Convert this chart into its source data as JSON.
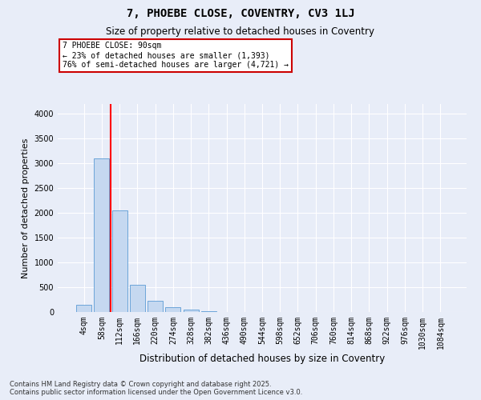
{
  "title": "7, PHOEBE CLOSE, COVENTRY, CV3 1LJ",
  "subtitle": "Size of property relative to detached houses in Coventry",
  "xlabel": "Distribution of detached houses by size in Coventry",
  "ylabel": "Number of detached properties",
  "footer_line1": "Contains HM Land Registry data © Crown copyright and database right 2025.",
  "footer_line2": "Contains public sector information licensed under the Open Government Licence v3.0.",
  "categories": [
    "4sqm",
    "58sqm",
    "112sqm",
    "166sqm",
    "220sqm",
    "274sqm",
    "328sqm",
    "382sqm",
    "436sqm",
    "490sqm",
    "544sqm",
    "598sqm",
    "652sqm",
    "706sqm",
    "760sqm",
    "814sqm",
    "868sqm",
    "922sqm",
    "976sqm",
    "1030sqm",
    "1084sqm"
  ],
  "values": [
    150,
    3100,
    2050,
    550,
    220,
    90,
    50,
    10,
    5,
    5,
    5,
    0,
    0,
    0,
    0,
    0,
    0,
    0,
    0,
    0,
    0
  ],
  "bar_color": "#c5d8f0",
  "bar_edge_color": "#5b9bd5",
  "redline_x": 1.5,
  "ylim": [
    0,
    4200
  ],
  "yticks": [
    0,
    500,
    1000,
    1500,
    2000,
    2500,
    3000,
    3500,
    4000
  ],
  "annotation_title": "7 PHOEBE CLOSE: 90sqm",
  "annotation_line1": "← 23% of detached houses are smaller (1,393)",
  "annotation_line2": "76% of semi-detached houses are larger (4,721) →",
  "annotation_box_facecolor": "#ffffff",
  "annotation_box_edgecolor": "#cc0000",
  "bg_color": "#e8edf8",
  "plot_bg_color": "#e8edf8",
  "grid_color": "#ffffff",
  "title_fontsize": 10,
  "subtitle_fontsize": 8.5,
  "ylabel_fontsize": 8,
  "xlabel_fontsize": 8.5,
  "tick_fontsize": 7,
  "annot_fontsize": 7,
  "footer_fontsize": 6
}
